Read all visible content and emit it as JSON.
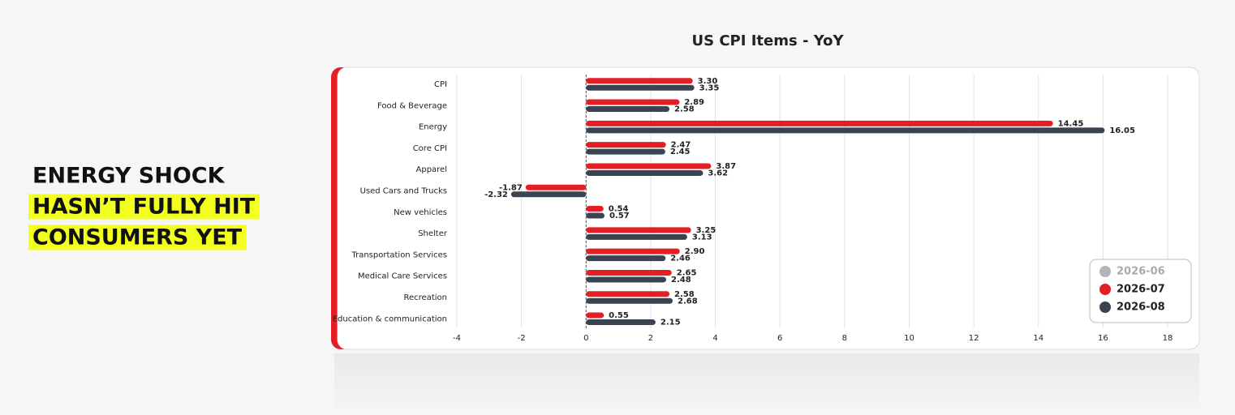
{
  "headline": [
    "ENERGY SHOCK",
    "HASN’T FULLY HIT",
    "CONSUMERS YET"
  ],
  "chart_data": {
    "type": "bar",
    "orientation": "horizontal",
    "title": "US CPI Items - YoY",
    "categories": [
      "CPI",
      "Food & Beverage",
      "Energy",
      "Core CPI",
      "Apparel",
      "Used Cars and Trucks",
      "New vehicles",
      "Shelter",
      "Transportation Services",
      "Medical Care Services",
      "Recreation",
      "Education & communication"
    ],
    "series": [
      {
        "name": "2026-06",
        "color": "#b5b5b5",
        "values": [
          null,
          null,
          null,
          null,
          null,
          null,
          null,
          null,
          null,
          null,
          null,
          null
        ]
      },
      {
        "name": "2026-07",
        "color": "#e31e24",
        "values": [
          3.3,
          2.89,
          14.45,
          2.47,
          3.87,
          -1.87,
          0.54,
          3.25,
          2.9,
          2.65,
          2.58,
          0.55
        ],
        "value_labels": [
          "3.30",
          "2.89",
          "14.45",
          "2.47",
          "3.87",
          "-1.87",
          "0.54",
          "3.25",
          "2.90",
          "2.65",
          "2.58",
          "0.55"
        ]
      },
      {
        "name": "2026-08",
        "color": "#3a4450",
        "values": [
          3.35,
          2.58,
          16.05,
          2.45,
          3.62,
          -2.32,
          0.57,
          3.13,
          2.46,
          2.48,
          2.68,
          2.15
        ],
        "value_labels": [
          "3.35",
          "2.58",
          "16.05",
          "2.45",
          "3.62",
          "-2.32",
          "0.57",
          "3.13",
          "2.46",
          "2.48",
          "2.68",
          "2.15"
        ]
      }
    ],
    "xlim": [
      -4,
      18
    ],
    "xticks": [
      -4,
      -2,
      0,
      2,
      4,
      6,
      8,
      10,
      12,
      14,
      16,
      18
    ],
    "grid": true,
    "legend": "lower right"
  }
}
